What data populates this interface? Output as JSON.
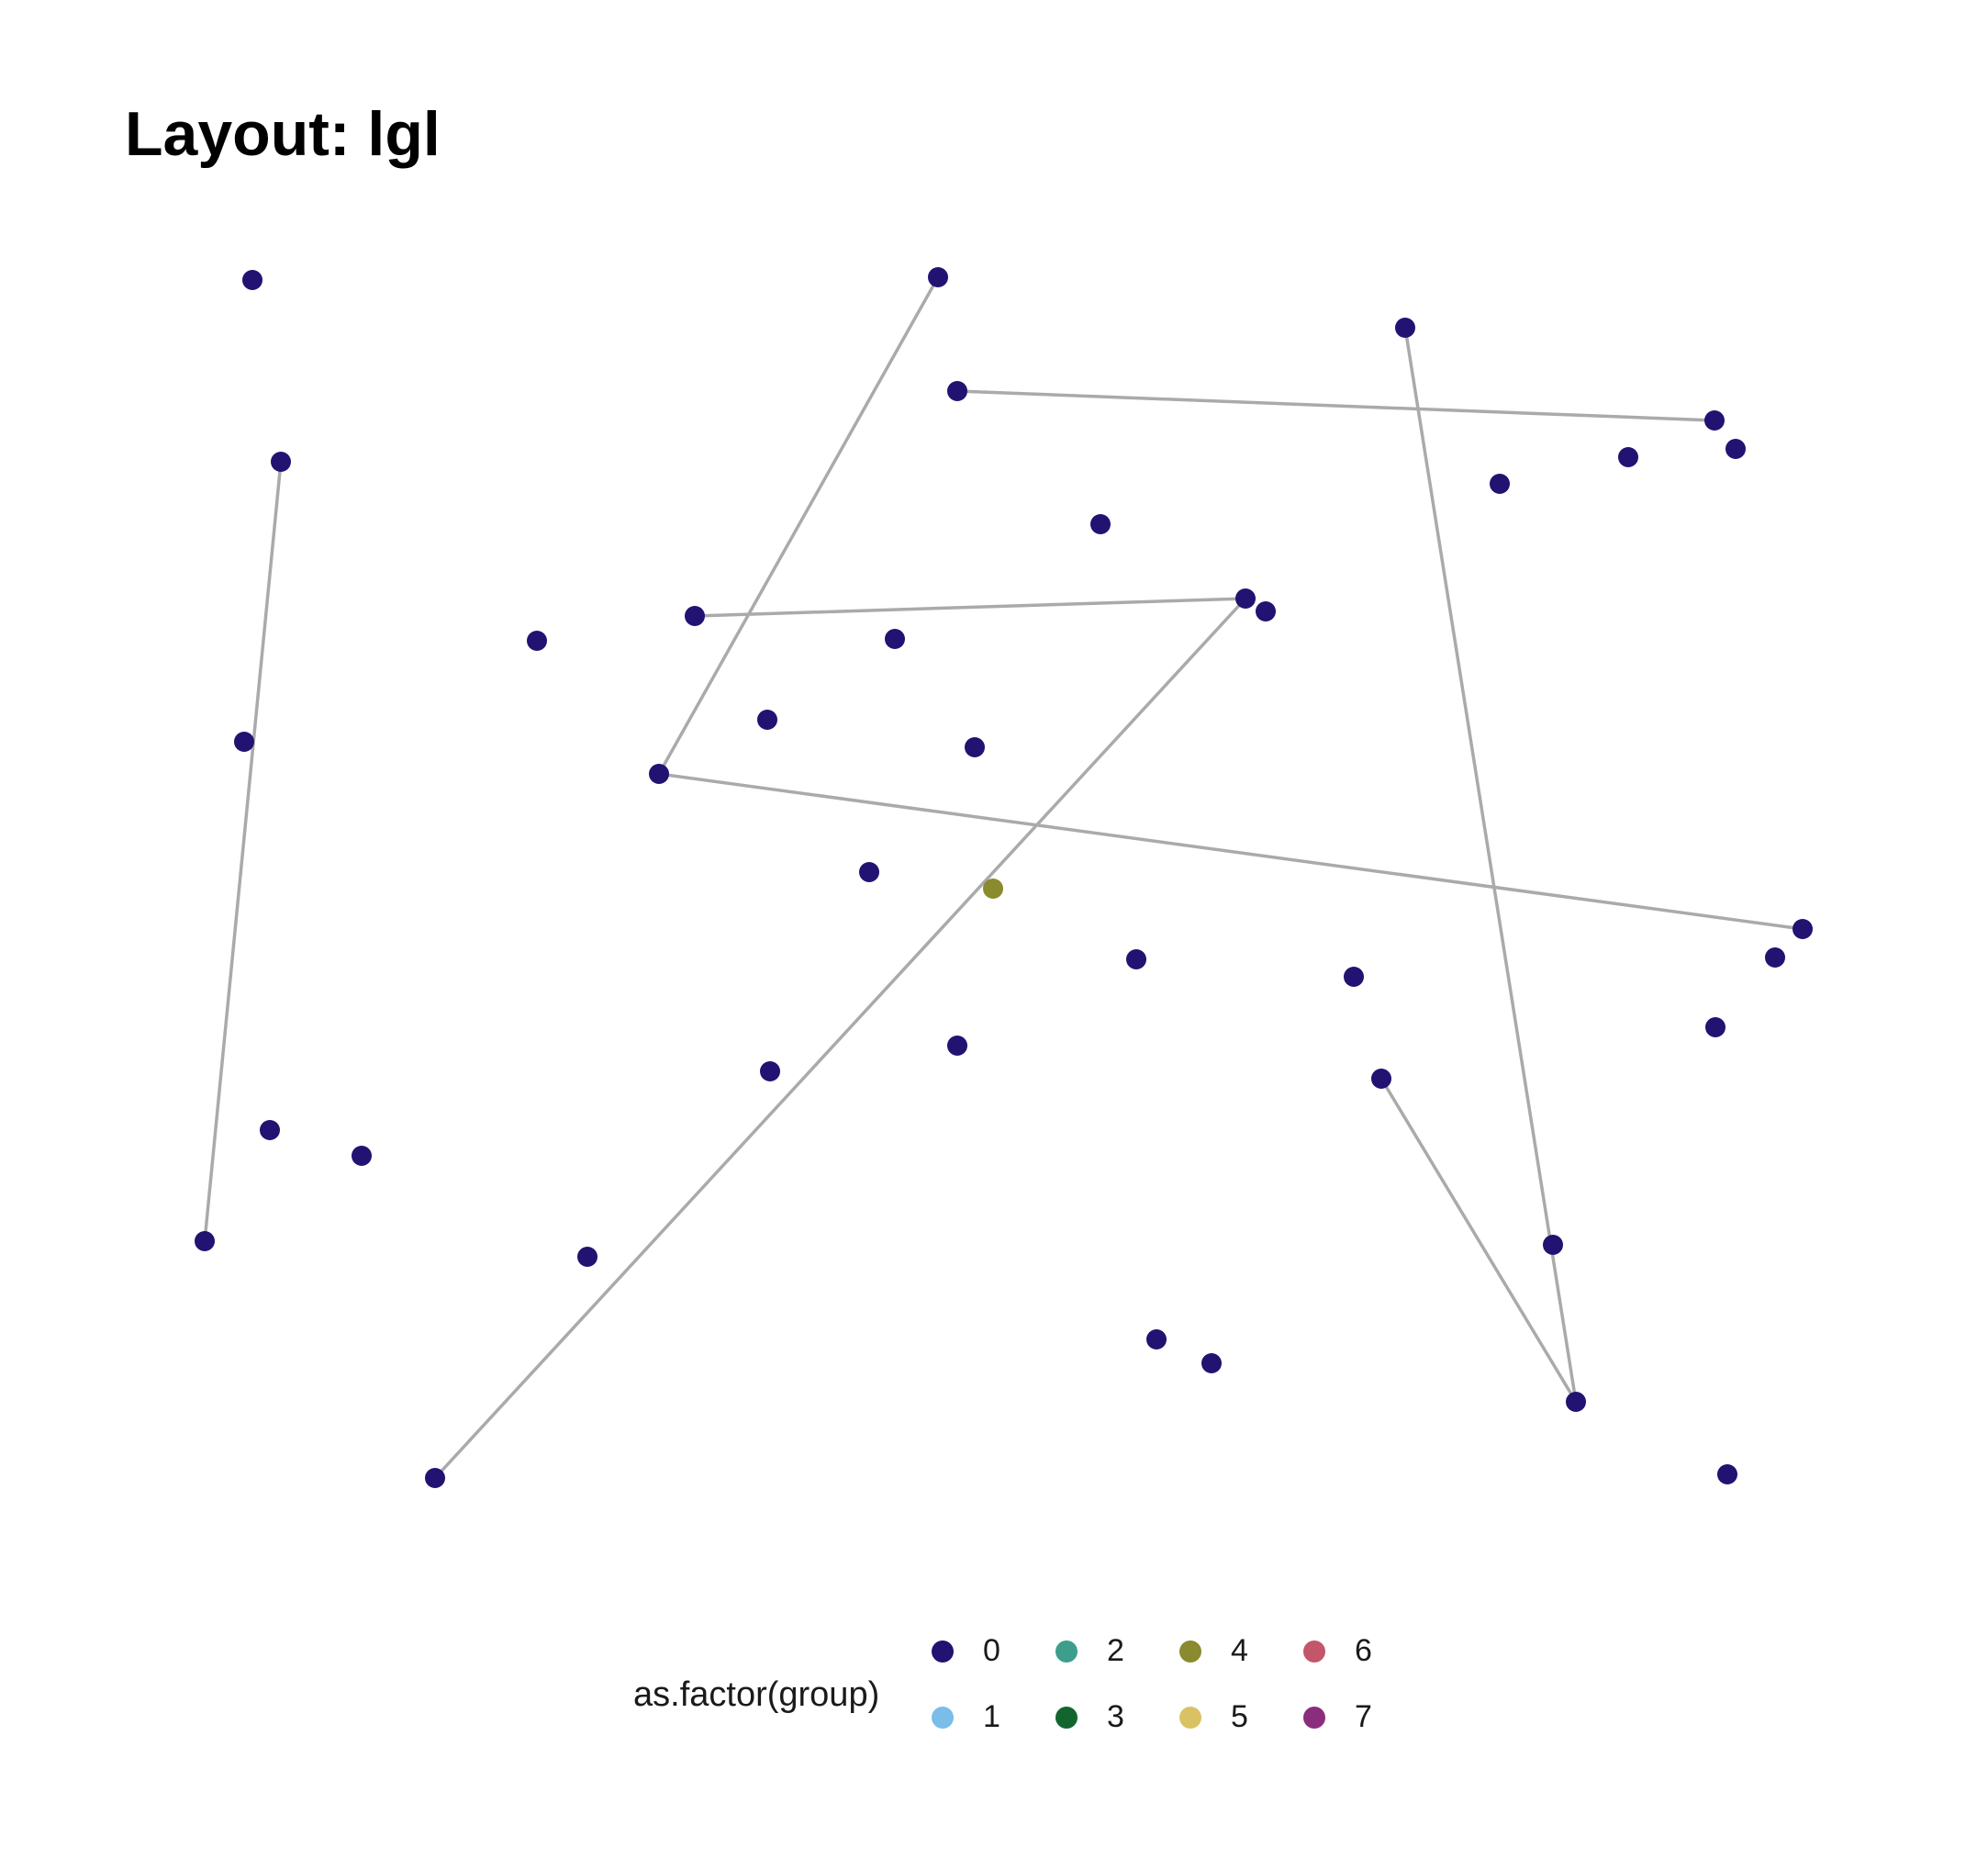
{
  "title": "Layout: lgl",
  "legend": {
    "title": "as.factor(group)",
    "items": [
      {
        "label": "0",
        "color": "#221271"
      },
      {
        "label": "1",
        "color": "#79bde8"
      },
      {
        "label": "2",
        "color": "#3d9e8c"
      },
      {
        "label": "3",
        "color": "#136530"
      },
      {
        "label": "4",
        "color": "#8a8a2e"
      },
      {
        "label": "5",
        "color": "#d9c263"
      },
      {
        "label": "6",
        "color": "#c45669"
      },
      {
        "label": "7",
        "color": "#8b2d7d"
      }
    ]
  },
  "network": {
    "edge_color": "#aaaaaa",
    "node_group_colors": {
      "0": "#221271",
      "4": "#8a8a2e"
    },
    "nodes": [
      {
        "id": "n1",
        "group": "0"
      },
      {
        "id": "n2",
        "group": "0"
      },
      {
        "id": "n3",
        "group": "0"
      },
      {
        "id": "n4",
        "group": "0"
      },
      {
        "id": "n5",
        "group": "0"
      },
      {
        "id": "n6",
        "group": "0"
      },
      {
        "id": "n7",
        "group": "0"
      },
      {
        "id": "n8",
        "group": "0"
      },
      {
        "id": "n9",
        "group": "0"
      },
      {
        "id": "n10",
        "group": "0"
      },
      {
        "id": "n11",
        "group": "0"
      },
      {
        "id": "n12",
        "group": "0"
      },
      {
        "id": "n13",
        "group": "0"
      },
      {
        "id": "n14",
        "group": "0"
      },
      {
        "id": "n15",
        "group": "0"
      },
      {
        "id": "n16",
        "group": "0"
      },
      {
        "id": "n17",
        "group": "0"
      },
      {
        "id": "n18",
        "group": "0"
      },
      {
        "id": "n19",
        "group": "0"
      },
      {
        "id": "n20",
        "group": "0"
      },
      {
        "id": "n21",
        "group": "4"
      },
      {
        "id": "n22",
        "group": "0"
      },
      {
        "id": "n23",
        "group": "0"
      },
      {
        "id": "n24",
        "group": "0"
      },
      {
        "id": "n25",
        "group": "0"
      },
      {
        "id": "n26",
        "group": "0"
      },
      {
        "id": "n27",
        "group": "0"
      },
      {
        "id": "n28",
        "group": "0"
      },
      {
        "id": "n29",
        "group": "0"
      },
      {
        "id": "n30",
        "group": "0"
      },
      {
        "id": "n31",
        "group": "0"
      },
      {
        "id": "n32",
        "group": "0"
      },
      {
        "id": "n33",
        "group": "0"
      },
      {
        "id": "n34",
        "group": "0"
      },
      {
        "id": "n35",
        "group": "0"
      },
      {
        "id": "n36",
        "group": "0"
      },
      {
        "id": "n37",
        "group": "0"
      },
      {
        "id": "n38",
        "group": "0"
      },
      {
        "id": "n39",
        "group": "0"
      },
      {
        "id": "n40",
        "group": "0"
      },
      {
        "id": "n41",
        "group": "0"
      },
      {
        "id": "n42",
        "group": "0"
      }
    ],
    "edges": [
      [
        "n3",
        "n31"
      ],
      [
        "n8",
        "n16"
      ],
      [
        "n14",
        "n15"
      ],
      [
        "n5",
        "n18"
      ],
      [
        "n15",
        "n40"
      ],
      [
        "n17",
        "n24"
      ],
      [
        "n38",
        "n39"
      ],
      [
        "n2",
        "n30"
      ],
      [
        "n30",
        "n35"
      ],
      [
        "n33",
        "n35"
      ]
    ]
  }
}
